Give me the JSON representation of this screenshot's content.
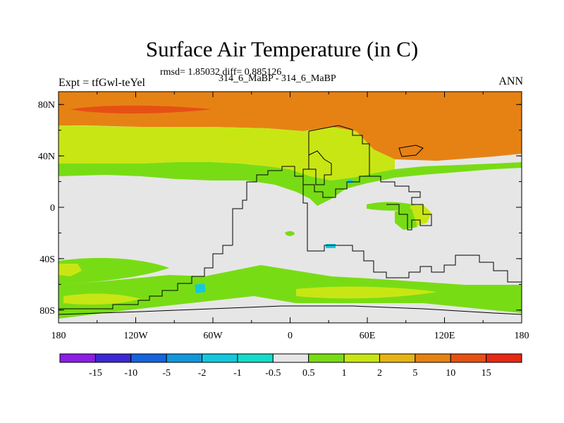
{
  "title": "Surface Air Temperature (in C)",
  "subtitle": "rmsd= 1.85032 diff= 0.885126",
  "left_label": "Expt = tfGwl-teYel",
  "center_label": "314_6_MaBP - 314_6_MaBP",
  "right_label": "ANN",
  "lat_ticks": [
    {
      "value": 80,
      "label": "80N"
    },
    {
      "value": 40,
      "label": "40N"
    },
    {
      "value": 0,
      "label": "0"
    },
    {
      "value": -40,
      "label": "40S"
    },
    {
      "value": -80,
      "label": "80S"
    }
  ],
  "lon_ticks": [
    {
      "value": -180,
      "label": "180"
    },
    {
      "value": -120,
      "label": "120W"
    },
    {
      "value": -60,
      "label": "60W"
    },
    {
      "value": 0,
      "label": "0"
    },
    {
      "value": 60,
      "label": "60E"
    },
    {
      "value": 120,
      "label": "120E"
    },
    {
      "value": 180,
      "label": "180"
    }
  ],
  "colorbar": {
    "boundaries": [
      "-15",
      "-10",
      "-5",
      "-2",
      "-1",
      "-0.5",
      "0.5",
      "1",
      "2",
      "5",
      "10",
      "15"
    ],
    "colors": [
      "#8c1ee6",
      "#3c28d2",
      "#1464dc",
      "#1496dc",
      "#14c8dc",
      "#14dcc8",
      "#e6e6e6",
      "#78dc14",
      "#c8e614",
      "#e6b414",
      "#e68214",
      "#e65014",
      "#e62814"
    ]
  },
  "field_colors": {
    "neutral": "#e6e6e6",
    "green": "#78dc14",
    "yellow": "#c8e614",
    "gold": "#e6b414",
    "orange": "#e68214",
    "red": "#e65014",
    "cyan": "#14c8dc"
  }
}
